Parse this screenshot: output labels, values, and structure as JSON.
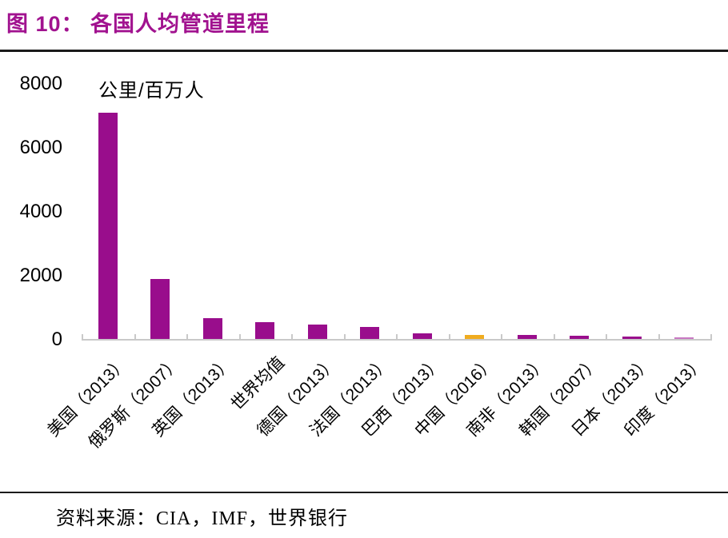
{
  "header": {
    "figure_title": "图 10：  各国人均管道里程"
  },
  "colors": {
    "title_purple": "#A1128F",
    "bar_purple": "#990D8C",
    "highlight_gold": "#F0AC1F",
    "india_light_purple": "#C878C2",
    "axis_gray": "#C9C9C9",
    "divider_dark": "#1a1a1a"
  },
  "chart_data": {
    "type": "bar",
    "title": "各国人均管道里程",
    "unit_label": "公里/百万人",
    "categories": [
      "美国（2013）",
      "俄罗斯（2007）",
      "英国（2013）",
      "世界均值",
      "德国（2013）",
      "法国（2013）",
      "巴西（2013）",
      "中国（2016）",
      "南非（2013）",
      "韩国（2007）",
      "日本（2013）",
      "印度（2013）"
    ],
    "values": [
      7070,
      1880,
      655,
      530,
      445,
      365,
      175,
      125,
      120,
      110,
      75,
      50
    ],
    "bar_colors": [
      "#990D8C",
      "#990D8C",
      "#990D8C",
      "#990D8C",
      "#990D8C",
      "#990D8C",
      "#990D8C",
      "#F0AC1F",
      "#990D8C",
      "#990D8C",
      "#990D8C",
      "#C878C2"
    ],
    "xlabel": "",
    "ylabel": "公里/百万人",
    "ylim": [
      0,
      8000
    ],
    "yticks": [
      0,
      2000,
      4000,
      6000,
      8000
    ],
    "grid": false,
    "legend": false
  },
  "footer": {
    "source": "资料来源：CIA，IMF，世界银行"
  }
}
